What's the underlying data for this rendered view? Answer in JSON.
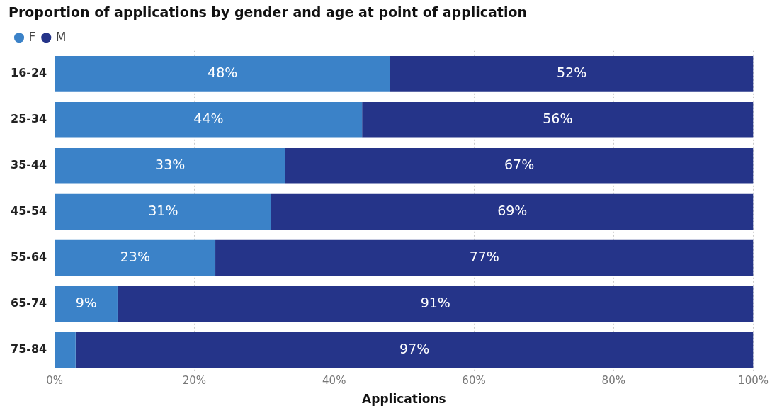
{
  "chart_data": {
    "type": "bar",
    "orientation": "horizontal",
    "stacked": true,
    "title": "Proportion of applications by gender and age at point of application",
    "xlabel": "Applications",
    "categories": [
      "16-24",
      "25-34",
      "35-44",
      "45-54",
      "55-64",
      "65-74",
      "75-84"
    ],
    "series": [
      {
        "name": "F",
        "color": "#3b82c8",
        "values": [
          48,
          44,
          33,
          31,
          23,
          9,
          3
        ],
        "value_labels": [
          "48%",
          "44%",
          "33%",
          "31%",
          "23%",
          "9%",
          null
        ]
      },
      {
        "name": "M",
        "color": "#253489",
        "values": [
          52,
          56,
          67,
          69,
          77,
          91,
          97
        ],
        "value_labels": [
          "52%",
          "56%",
          "67%",
          "69%",
          "77%",
          "91%",
          "97%"
        ]
      }
    ],
    "xlim": [
      0,
      100
    ],
    "xticks": [
      {
        "value": 0,
        "label": "0%"
      },
      {
        "value": 20,
        "label": "20%"
      },
      {
        "value": 40,
        "label": "40%"
      },
      {
        "value": 60,
        "label": "60%"
      },
      {
        "value": 80,
        "label": "80%"
      },
      {
        "value": 100,
        "label": "100%"
      }
    ],
    "grid": "x",
    "legend": "top left",
    "marker": "circle"
  }
}
